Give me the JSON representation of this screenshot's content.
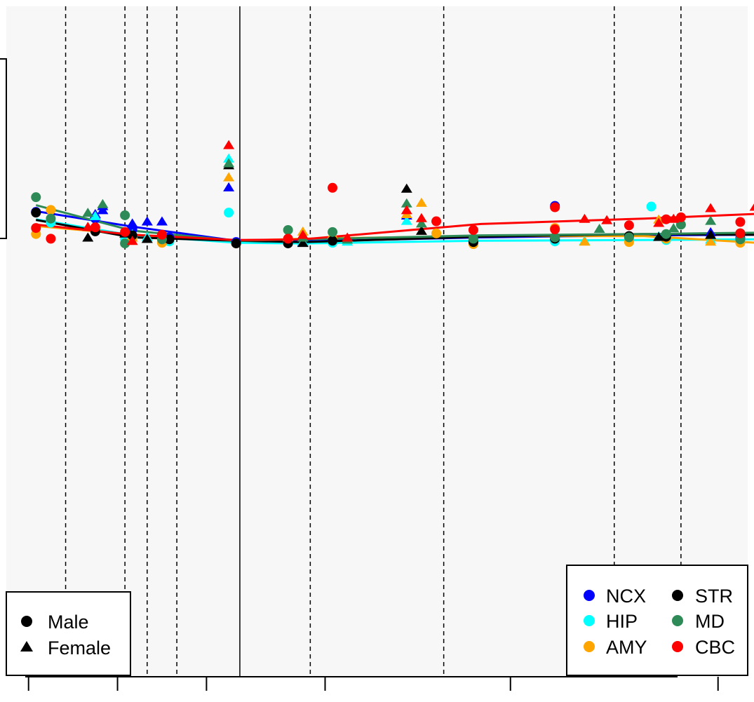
{
  "chart_data": {
    "type": "scatter",
    "title": "",
    "xlabel": "",
    "ylabel": "",
    "xlim": [
      0,
      100
    ],
    "ylim": [
      0,
      100
    ],
    "grid": false,
    "background_color": "#f7f7f7",
    "x_ticks": [
      3,
      15,
      27,
      43,
      68,
      96
    ],
    "dashed_vlines": [
      8,
      16,
      19,
      23,
      41,
      59,
      82,
      91
    ],
    "solid_vlines": [
      31.5
    ],
    "legend_shape": {
      "placement": "bottom-left",
      "entries": [
        {
          "label": "Male",
          "shape": "circle"
        },
        {
          "label": "Female",
          "shape": "triangle"
        }
      ]
    },
    "legend_region": {
      "placement": "bottom-right",
      "entries": [
        {
          "label": "NCX",
          "color": "#0000ff"
        },
        {
          "label": "HIP",
          "color": "#00ffff"
        },
        {
          "label": "AMY",
          "color": "#ffa500"
        },
        {
          "label": "STR",
          "color": "#000000"
        },
        {
          "label": "MD",
          "color": "#2e8b57"
        },
        {
          "label": "CBC",
          "color": "#ff0000"
        }
      ]
    },
    "series": [
      {
        "region": "NCX",
        "color": "#0000ff",
        "trend": [
          [
            4,
            69.4
          ],
          [
            17,
            67.1
          ],
          [
            31,
            65.0
          ],
          [
            40,
            64.9
          ],
          [
            64,
            65.5
          ],
          [
            86,
            65.8
          ],
          [
            101,
            65.9
          ]
        ],
        "male": [
          [
            4,
            69.3
          ],
          [
            12,
            68.3
          ],
          [
            17,
            66.7
          ],
          [
            22,
            65.5
          ],
          [
            31,
            64.8
          ],
          [
            38,
            64.7
          ],
          [
            44,
            64.9
          ],
          [
            63,
            65.0
          ],
          [
            74,
            65.1
          ],
          [
            74,
            70.2
          ],
          [
            89,
            65.2
          ],
          [
            99,
            65.4
          ]
        ],
        "female": [
          [
            12,
            69.0
          ],
          [
            13,
            70.2
          ],
          [
            13,
            69.6
          ],
          [
            17,
            67.6
          ],
          [
            19,
            67.9
          ],
          [
            21,
            67.9
          ],
          [
            30,
            73.0
          ],
          [
            40,
            64.8
          ],
          [
            54,
            68.8
          ],
          [
            88,
            65.6
          ],
          [
            95,
            66.3
          ]
        ]
      },
      {
        "region": "HIP",
        "color": "#00ffff",
        "trend": [
          [
            4,
            68.2
          ],
          [
            17,
            65.8
          ],
          [
            31,
            64.7
          ],
          [
            40,
            64.6
          ],
          [
            64,
            65.0
          ],
          [
            86,
            65.1
          ],
          [
            101,
            65.2
          ]
        ],
        "male": [
          [
            6,
            67.7
          ],
          [
            16,
            65.3
          ],
          [
            22,
            64.9
          ],
          [
            30,
            69.2
          ],
          [
            38,
            64.7
          ],
          [
            44,
            64.7
          ],
          [
            63,
            65.1
          ],
          [
            74,
            64.9
          ],
          [
            87,
            70.1
          ],
          [
            89,
            65.1
          ],
          [
            99,
            64.8
          ]
        ],
        "female": [
          [
            12,
            68.7
          ],
          [
            17,
            66.0
          ],
          [
            19,
            65.6
          ],
          [
            30,
            77.3
          ],
          [
            40,
            64.9
          ],
          [
            46,
            64.9
          ],
          [
            54,
            68.0
          ],
          [
            78,
            65.0
          ],
          [
            88,
            65.7
          ],
          [
            95,
            65.2
          ]
        ]
      },
      {
        "region": "AMY",
        "color": "#ffa500",
        "trend": [
          [
            4,
            67.2
          ],
          [
            17,
            65.9
          ],
          [
            31,
            65.0
          ],
          [
            40,
            65.3
          ],
          [
            64,
            65.7
          ],
          [
            86,
            65.7
          ],
          [
            101,
            64.7
          ]
        ],
        "male": [
          [
            4,
            66.0
          ],
          [
            6,
            69.6
          ],
          [
            17,
            65.3
          ],
          [
            21,
            64.7
          ],
          [
            31,
            64.6
          ],
          [
            38,
            65.0
          ],
          [
            44,
            65.3
          ],
          [
            58,
            66.1
          ],
          [
            63,
            64.5
          ],
          [
            74,
            66.9
          ],
          [
            84,
            64.8
          ],
          [
            89,
            65.3
          ],
          [
            99,
            64.7
          ]
        ],
        "female": [
          [
            12,
            67.1
          ],
          [
            17,
            65.5
          ],
          [
            30,
            74.5
          ],
          [
            40,
            66.4
          ],
          [
            54,
            69.0
          ],
          [
            56,
            70.7
          ],
          [
            78,
            64.9
          ],
          [
            88,
            68.2
          ],
          [
            95,
            64.9
          ]
        ]
      },
      {
        "region": "STR",
        "color": "#000000",
        "trend": [
          [
            4,
            68.1
          ],
          [
            17,
            65.5
          ],
          [
            31,
            65.0
          ],
          [
            40,
            64.8
          ],
          [
            64,
            65.6
          ],
          [
            86,
            66.0
          ],
          [
            101,
            65.9
          ]
        ],
        "male": [
          [
            4,
            69.2
          ],
          [
            12,
            66.4
          ],
          [
            17,
            65.8
          ],
          [
            22,
            65.2
          ],
          [
            31,
            64.6
          ],
          [
            38,
            64.6
          ],
          [
            44,
            65.0
          ],
          [
            63,
            64.8
          ],
          [
            74,
            65.3
          ],
          [
            84,
            65.7
          ],
          [
            89,
            65.6
          ],
          [
            99,
            66.1
          ]
        ],
        "female": [
          [
            11,
            65.5
          ],
          [
            16,
            66.1
          ],
          [
            19,
            65.3
          ],
          [
            30,
            76.3
          ],
          [
            40,
            64.7
          ],
          [
            54,
            72.8
          ],
          [
            56,
            66.5
          ],
          [
            88,
            65.6
          ],
          [
            95,
            65.9
          ]
        ]
      },
      {
        "region": "MD",
        "color": "#2e8b57",
        "trend": [
          [
            4,
            70.3
          ],
          [
            17,
            66.5
          ],
          [
            31,
            65.0
          ],
          [
            40,
            65.2
          ],
          [
            64,
            65.8
          ],
          [
            86,
            66.0
          ],
          [
            101,
            66.2
          ]
        ],
        "male": [
          [
            4,
            71.5
          ],
          [
            6,
            68.3
          ],
          [
            16,
            64.6
          ],
          [
            16,
            68.8
          ],
          [
            21,
            65.2
          ],
          [
            38,
            66.6
          ],
          [
            44,
            66.3
          ],
          [
            63,
            65.3
          ],
          [
            74,
            65.5
          ],
          [
            84,
            65.5
          ],
          [
            89,
            66.0
          ],
          [
            91,
            67.4
          ],
          [
            99,
            65.2
          ]
        ],
        "female": [
          [
            11,
            69.2
          ],
          [
            13,
            70.5
          ],
          [
            30,
            76.6
          ],
          [
            40,
            65.5
          ],
          [
            46,
            65.2
          ],
          [
            54,
            70.6
          ],
          [
            56,
            67.6
          ],
          [
            80,
            66.8
          ],
          [
            90,
            66.9
          ],
          [
            95,
            68.0
          ]
        ]
      },
      {
        "region": "CBC",
        "color": "#ff0000",
        "trend": [
          [
            4,
            67.4
          ],
          [
            17,
            65.9
          ],
          [
            31,
            65.1
          ],
          [
            40,
            65.2
          ],
          [
            64,
            67.5
          ],
          [
            86,
            68.3
          ],
          [
            101,
            69.0
          ]
        ],
        "male": [
          [
            4,
            66.9
          ],
          [
            6,
            65.3
          ],
          [
            12,
            67.0
          ],
          [
            16,
            66.3
          ],
          [
            21,
            65.9
          ],
          [
            38,
            65.3
          ],
          [
            44,
            72.9
          ],
          [
            58,
            67.9
          ],
          [
            63,
            66.6
          ],
          [
            74,
            66.7
          ],
          [
            74,
            70.0
          ],
          [
            84,
            67.3
          ],
          [
            89,
            68.2
          ],
          [
            91,
            68.5
          ],
          [
            99,
            66.1
          ],
          [
            99,
            67.8
          ]
        ],
        "female": [
          [
            11,
            67.1
          ],
          [
            17,
            65.0
          ],
          [
            30,
            79.3
          ],
          [
            40,
            65.9
          ],
          [
            46,
            65.5
          ],
          [
            54,
            69.6
          ],
          [
            56,
            68.4
          ],
          [
            78,
            68.3
          ],
          [
            81,
            68.1
          ],
          [
            88,
            67.7
          ],
          [
            90,
            68.3
          ],
          [
            95,
            69.9
          ],
          [
            101,
            70.1
          ]
        ]
      }
    ]
  }
}
